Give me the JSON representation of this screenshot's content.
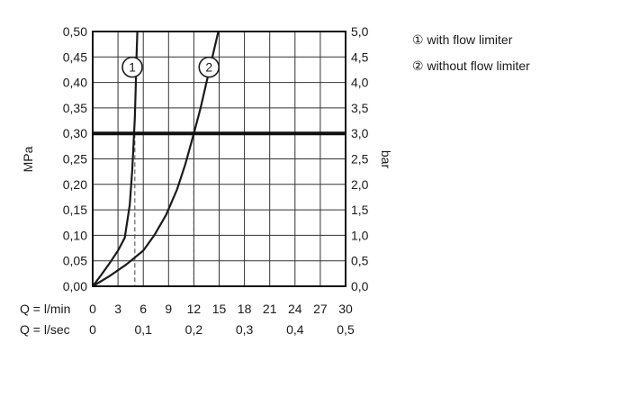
{
  "chart_data": {
    "type": "line",
    "title": "",
    "y_left_label": "MPa",
    "y_right_label": "bar",
    "y_left_ticks": [
      "0,00",
      "0,05",
      "0,10",
      "0,15",
      "0,20",
      "0,25",
      "0,30",
      "0,35",
      "0,40",
      "0,45",
      "0,50"
    ],
    "y_right_ticks": [
      "0,0",
      "0,5",
      "1,0",
      "1,5",
      "2,0",
      "2,5",
      "3,0",
      "3,5",
      "4,0",
      "4,5",
      "5,0"
    ],
    "ylim": [
      0,
      0.5
    ],
    "x_rows": [
      {
        "label": "Q = l/min",
        "ticks": [
          "0",
          "3",
          "6",
          "9",
          "12",
          "15",
          "18",
          "21",
          "24",
          "27",
          "30"
        ],
        "positions": [
          0,
          3,
          6,
          9,
          12,
          15,
          18,
          21,
          24,
          27,
          30
        ]
      },
      {
        "label": "Q = l/sec",
        "ticks": [
          "0",
          "0,1",
          "0,2",
          "0,3",
          "0,4",
          "0,5"
        ],
        "positions": [
          0,
          6,
          12,
          18,
          24,
          30
        ]
      }
    ],
    "xlim": [
      0,
      30
    ],
    "grid": true,
    "reference_line": {
      "y": 0.3
    },
    "series": [
      {
        "marker": "1",
        "name": "with flow limiter",
        "x": [
          0,
          1,
          2,
          3,
          3.8,
          4.4,
          4.7,
          4.85,
          5.0,
          5.1,
          5.2,
          5.3
        ],
        "y": [
          0,
          0.022,
          0.045,
          0.07,
          0.095,
          0.16,
          0.23,
          0.28,
          0.33,
          0.39,
          0.45,
          0.5
        ]
      },
      {
        "marker": "2",
        "name": "without flow limiter",
        "x": [
          0,
          2,
          4,
          6,
          7.3,
          8.7,
          10,
          11,
          12,
          12.8,
          13.5,
          14.2,
          14.9
        ],
        "y": [
          0,
          0.02,
          0.043,
          0.07,
          0.1,
          0.14,
          0.19,
          0.24,
          0.3,
          0.35,
          0.4,
          0.45,
          0.5
        ]
      }
    ],
    "guides": [
      {
        "x": 5.0,
        "y": 0.3
      },
      {
        "x": 12.0,
        "y": 0.3
      }
    ],
    "legend": {
      "position": "top-right",
      "items": [
        {
          "marker": "①",
          "label": "with flow limiter"
        },
        {
          "marker": "②",
          "label": "without flow limiter"
        }
      ]
    }
  }
}
